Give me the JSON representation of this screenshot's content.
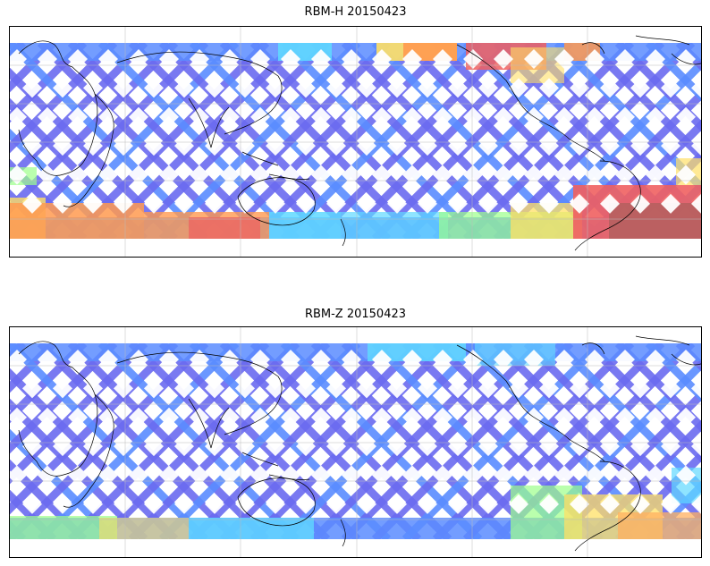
{
  "panels": [
    {
      "title": "RBM-H 20150423",
      "colors": {
        "band": "#6a6af0",
        "band_alt": "#5a8cff",
        "cyan": "#5fd8ff",
        "green": "#9dff8a",
        "yellow": "#ffe066",
        "orange": "#ff9a50",
        "red": "#f06060",
        "dark_red": "#b86060"
      }
    },
    {
      "title": "RBM-Z 20150423",
      "colors": {
        "band": "#6a6af0",
        "band_alt": "#5a8cff",
        "cyan": "#5fd8ff",
        "green": "#9dff8a",
        "yellow": "#ffe066",
        "orange": "#ffb060",
        "red": "#f07070",
        "dark_red": "#c87070"
      }
    }
  ]
}
